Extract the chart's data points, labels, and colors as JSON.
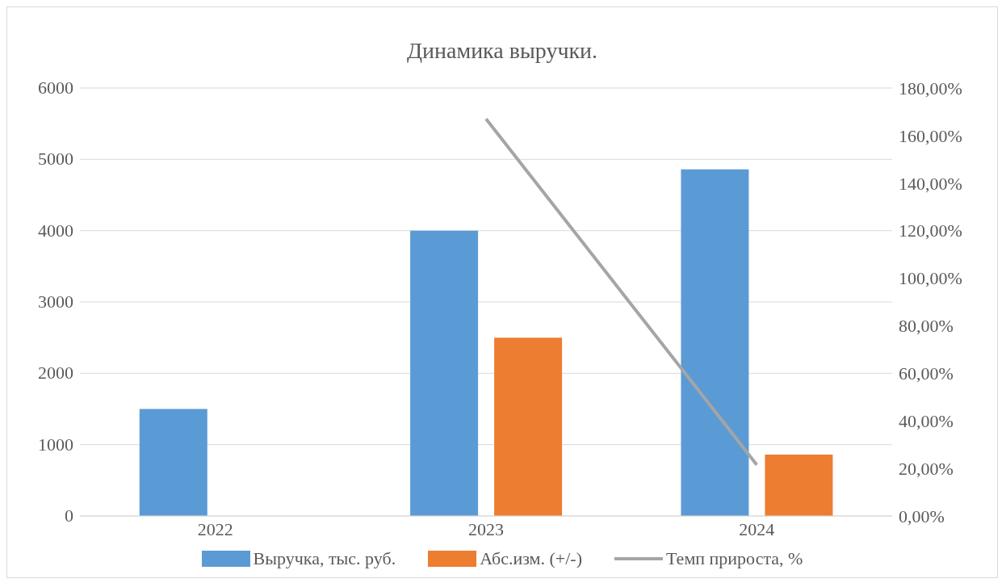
{
  "chart_data": {
    "type": "bar",
    "title": "Динамика выручки.",
    "categories": [
      "2022",
      "2023",
      "2024"
    ],
    "series": [
      {
        "name": "Выручка, тыс. руб.",
        "color": "#5b9bd5",
        "values": [
          1500,
          4000,
          4860
        ]
      },
      {
        "name": "Абс.изм. (+/-)",
        "color": "#ed7d31",
        "values": [
          null,
          2500,
          860
        ]
      },
      {
        "name": "Темп прироста, %",
        "type": "line",
        "axis": "y2",
        "color": "#a5a5a5",
        "values": [
          null,
          167,
          21.5
        ]
      }
    ],
    "ylim": [
      0,
      6000
    ],
    "yticks": [
      0,
      1000,
      2000,
      3000,
      4000,
      5000,
      6000
    ],
    "y2lim": [
      0,
      180
    ],
    "y2ticks": [
      {
        "value": 0,
        "label": "0,00%"
      },
      {
        "value": 20,
        "label": "20,00%"
      },
      {
        "value": 40,
        "label": "40,00%"
      },
      {
        "value": 60,
        "label": "60,00%"
      },
      {
        "value": 80,
        "label": "80,00%"
      },
      {
        "value": 100,
        "label": "100,00%"
      },
      {
        "value": 120,
        "label": "120,00%"
      },
      {
        "value": 140,
        "label": "140,00%"
      },
      {
        "value": 160,
        "label": "160,00%"
      },
      {
        "value": 180,
        "label": "180,00%"
      }
    ],
    "grid": "y",
    "legend": "bottom",
    "marker": "none"
  }
}
